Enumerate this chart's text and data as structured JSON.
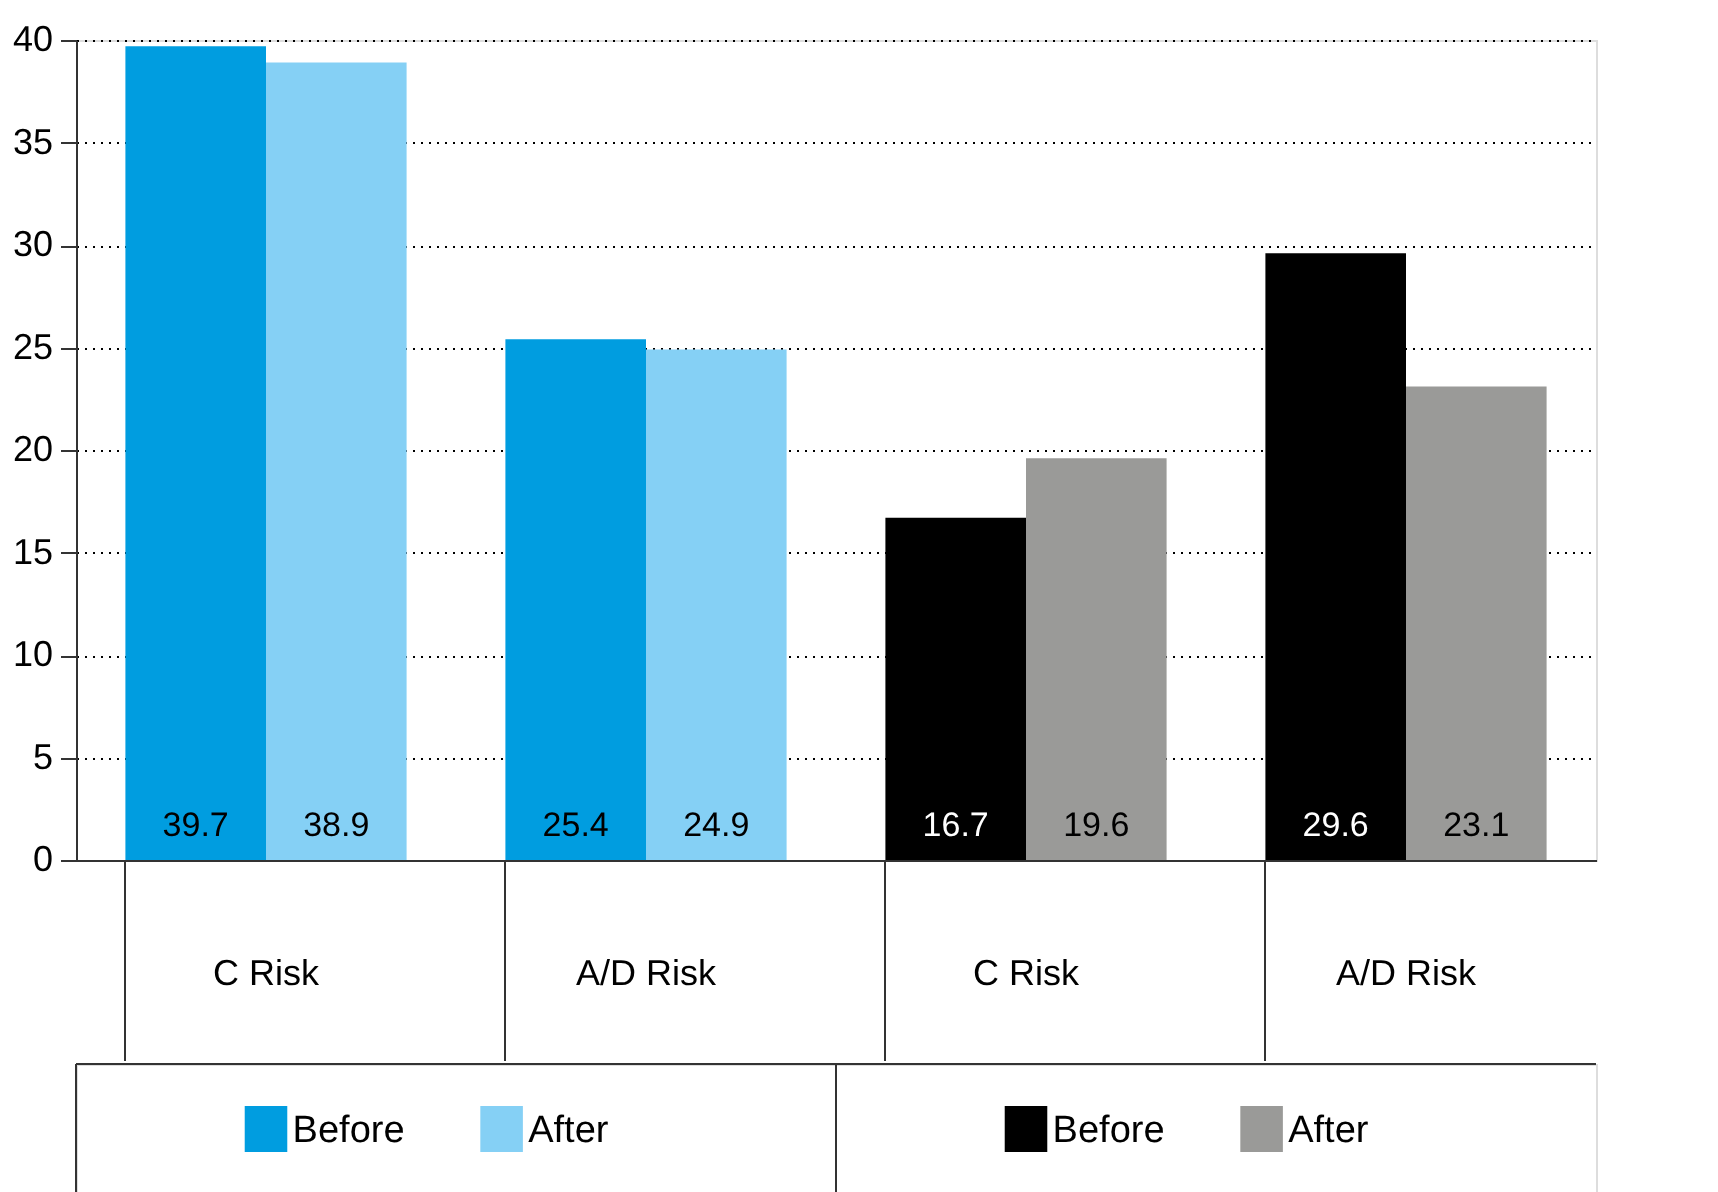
{
  "chart_data": {
    "type": "bar",
    "categories": [
      "C Risk",
      "A/D Risk",
      "C Risk",
      "A/D Risk"
    ],
    "series": [
      {
        "name": "Before",
        "color": "#009de0",
        "values": [
          39.7,
          25.4,
          null,
          null
        ]
      },
      {
        "name": "After",
        "color": "#85d0f5",
        "values": [
          38.9,
          24.9,
          null,
          null
        ]
      },
      {
        "name": "Before",
        "color": "#000000",
        "values": [
          null,
          null,
          16.7,
          29.6
        ]
      },
      {
        "name": "After",
        "color": "#9a9a98",
        "values": [
          null,
          null,
          19.6,
          23.1
        ]
      }
    ],
    "data_labels": true,
    "ylim": [
      0,
      40
    ],
    "yticks": [
      0,
      5,
      10,
      15,
      20,
      25,
      30,
      35,
      40
    ],
    "grid": "y",
    "legend": "bottom"
  }
}
